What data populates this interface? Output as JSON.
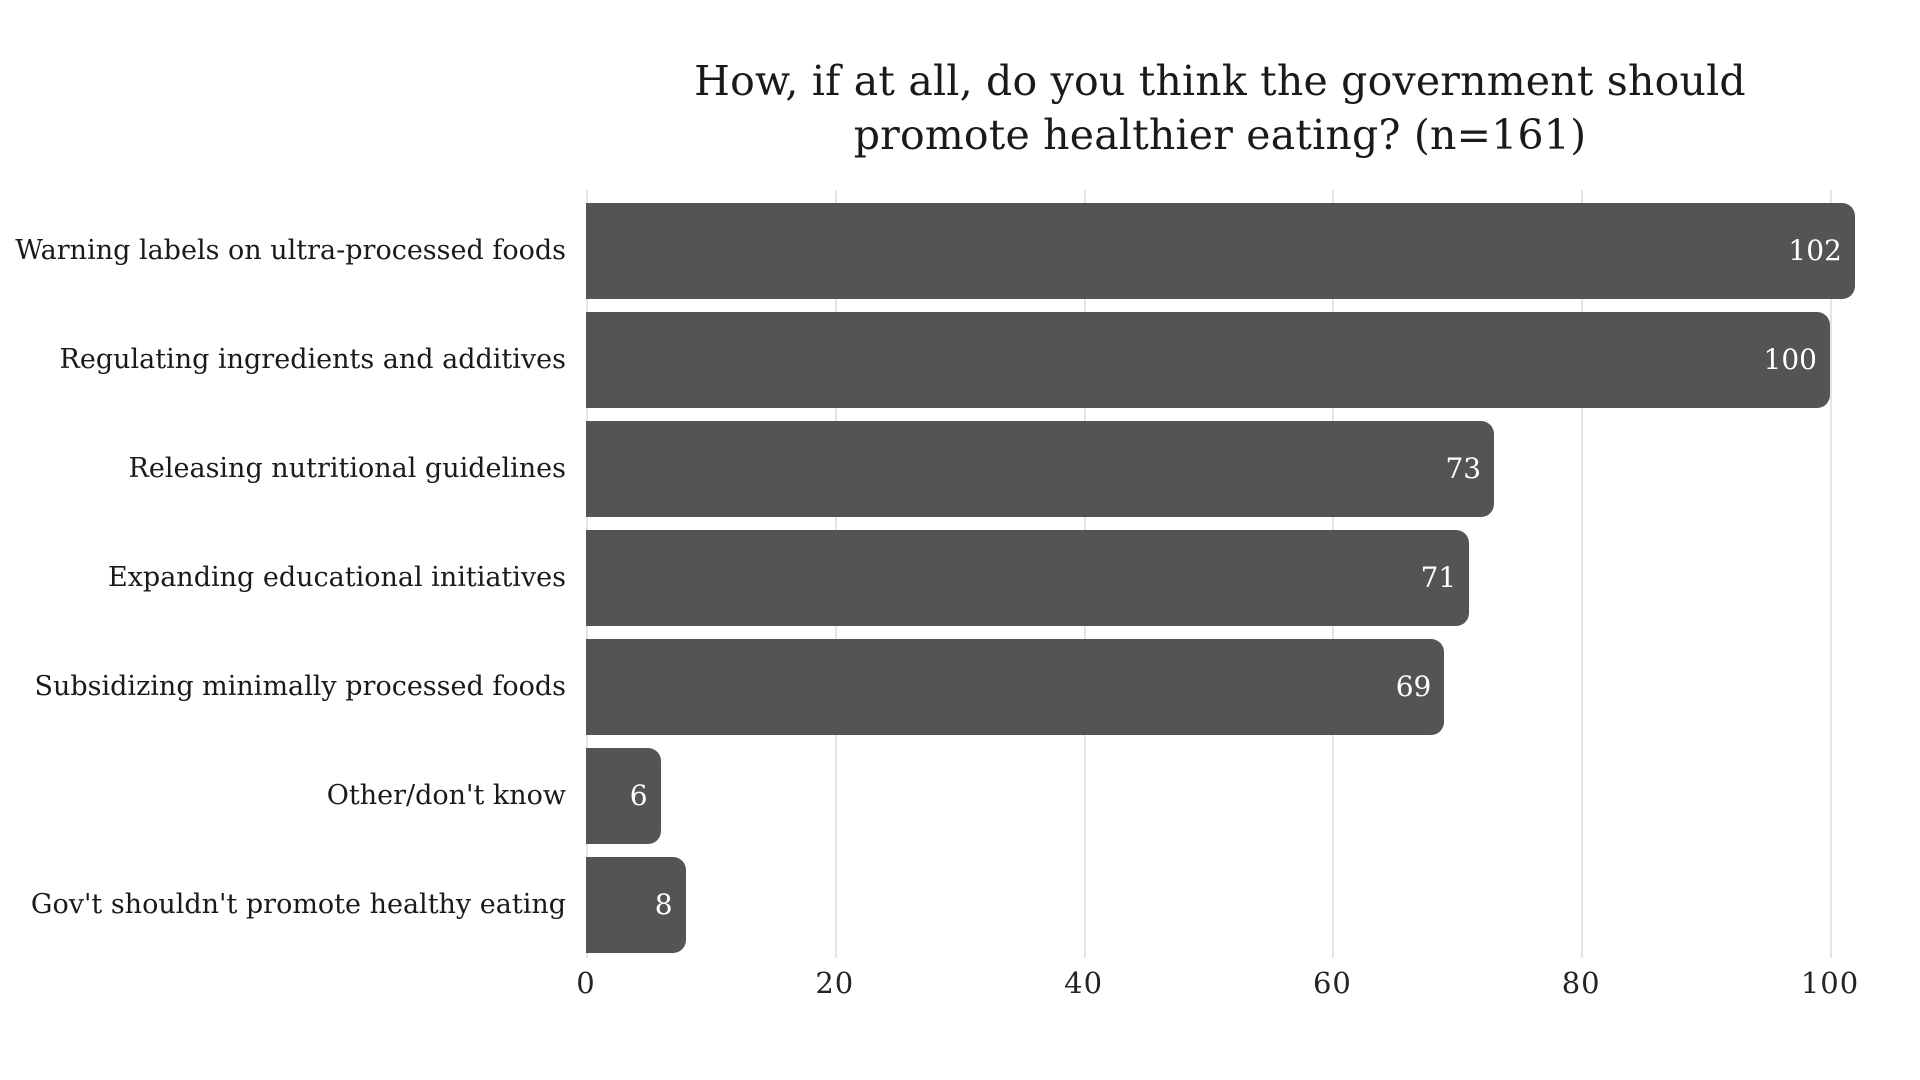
{
  "chart_data": {
    "type": "bar",
    "orientation": "horizontal",
    "title": "How, if at all, do you think the government should promote healthier eating? (n=161)",
    "title_lines": [
      "How, if at all, do you think the government should",
      "promote healthier eating? (n=161)"
    ],
    "categories": [
      "Warning labels on ultra-processed foods",
      "Regulating ingredients and additives",
      "Releasing nutritional guidelines",
      "Expanding educational initiatives",
      "Subsidizing minimally processed foods",
      "Other/don't know",
      "Gov't shouldn't promote healthy eating"
    ],
    "values": [
      102,
      100,
      73,
      71,
      69,
      6,
      8
    ],
    "value_label_position": "inside-right",
    "x_ticks": [
      0,
      20,
      40,
      60,
      80,
      100
    ],
    "xlim": [
      0,
      107
    ],
    "xlabel": "",
    "ylabel": "",
    "grid": "vertical-gridlines",
    "legend": "none",
    "colors": {
      "bar": "#545454",
      "value_label": "#ffffff",
      "text": "#1a1a1a",
      "tick_text": "#242424",
      "gridline": "#e4e4e4",
      "background": "#ffffff"
    }
  }
}
